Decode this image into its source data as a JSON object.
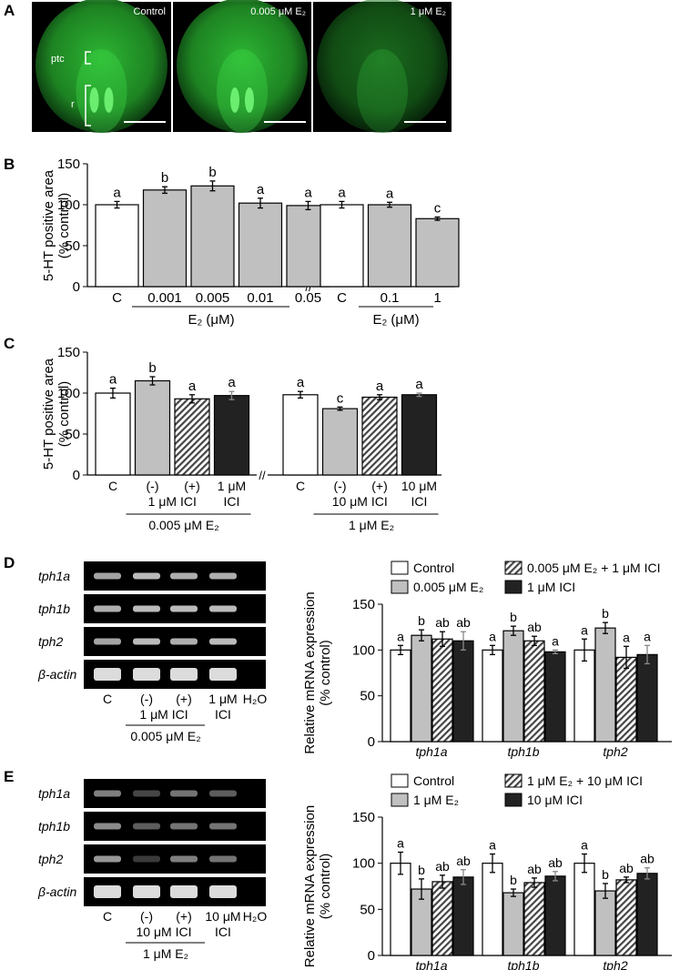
{
  "colors": {
    "white_bar": "#ffffff",
    "gray_bar": "#c0c0c0",
    "dark_bar": "#222222",
    "hatched_fg": "#444444",
    "micrograph_green": "#2fd13b",
    "gel_band": "#e8e8e8"
  },
  "panels": {
    "A": {
      "letter": "A",
      "images": [
        {
          "title": "Control"
        },
        {
          "title": "0.005 μM E₂"
        },
        {
          "title": "1 μM E₂"
        }
      ],
      "label_ptc": "ptc",
      "label_r": "r"
    },
    "B": {
      "letter": "B"
    },
    "C": {
      "letter": "C"
    },
    "D": {
      "letter": "D",
      "gel_rows": [
        "tph1a",
        "tph1b",
        "tph2",
        "β-actin"
      ],
      "lanes": [
        "C",
        "(-)",
        "(+)",
        "1 μM",
        "H₂O"
      ],
      "lane_sub": "ICI",
      "group1": "1 μM ICI",
      "group2": "0.005 μM E₂",
      "legend": [
        "Control",
        "0.005 μM E₂ + 1 μM ICI",
        "0.005 μM E₂",
        "1 μM ICI"
      ]
    },
    "E": {
      "letter": "E",
      "gel_rows": [
        "tph1a",
        "tph1b",
        "tph2",
        "β-actin"
      ],
      "lanes": [
        "C",
        "(-)",
        "(+)",
        "10 μM",
        "H₂O"
      ],
      "lane_sub": "ICI",
      "group1": "10 μM ICI",
      "group2": "1 μM E₂",
      "legend": [
        "Control",
        "1 μM E₂ + 10 μM ICI",
        "1 μM E₂",
        "10 μM ICI"
      ]
    }
  },
  "chart_data": [
    {
      "id": "B",
      "type": "bar",
      "ylabel": "5-HT positive area (% control)",
      "ylim": [
        0,
        150
      ],
      "yticks": [
        0,
        50,
        100,
        150
      ],
      "groups": [
        {
          "label": "E₂ (μM)",
          "bars": [
            {
              "x": "C",
              "value": 100,
              "err": 4,
              "letter": "a",
              "fill": "white"
            },
            {
              "x": "0.001",
              "value": 118,
              "err": 4,
              "letter": "b",
              "fill": "gray"
            },
            {
              "x": "0.005",
              "value": 123,
              "err": 6,
              "letter": "b",
              "fill": "gray"
            },
            {
              "x": "0.01",
              "value": 102,
              "err": 6,
              "letter": "a",
              "fill": "gray"
            },
            {
              "x": "0.05",
              "value": 99,
              "err": 5,
              "letter": "a",
              "fill": "gray"
            }
          ]
        },
        {
          "label": "E₂ (μM)",
          "bars": [
            {
              "x": "C",
              "value": 100,
              "err": 4,
              "letter": "a",
              "fill": "white"
            },
            {
              "x": "0.1",
              "value": 100,
              "err": 3,
              "letter": "a",
              "fill": "gray"
            },
            {
              "x": "1",
              "value": 83,
              "err": 2,
              "letter": "c",
              "fill": "gray"
            }
          ]
        }
      ]
    },
    {
      "id": "C",
      "type": "bar",
      "ylabel": "5-HT positive area (% control)",
      "ylim": [
        0,
        150
      ],
      "yticks": [
        0,
        50,
        100,
        150
      ],
      "groups": [
        {
          "bars": [
            {
              "x": "C",
              "value": 100,
              "err": 6,
              "letter": "a",
              "fill": "white"
            },
            {
              "x": "(-)",
              "value": 115,
              "err": 5,
              "letter": "b",
              "fill": "gray"
            },
            {
              "x": "(+)",
              "value": 93,
              "err": 5,
              "letter": "a",
              "fill": "hatch"
            },
            {
              "x": "1 μM",
              "x2": "ICI",
              "value": 97,
              "err": 5,
              "letter": "a",
              "fill": "dark"
            }
          ],
          "sub1": "1 μM ICI",
          "sub2": "0.005 μM E₂"
        },
        {
          "bars": [
            {
              "x": "C",
              "value": 98,
              "err": 4,
              "letter": "a",
              "fill": "white"
            },
            {
              "x": "(-)",
              "value": 81,
              "err": 2,
              "letter": "c",
              "fill": "gray"
            },
            {
              "x": "(+)",
              "value": 95,
              "err": 3,
              "letter": "a",
              "fill": "hatch"
            },
            {
              "x": "10 μM",
              "x2": "ICI",
              "value": 98,
              "err": 2,
              "letter": "a",
              "fill": "dark"
            }
          ],
          "sub1": "10 μM ICI",
          "sub2": "1 μM E₂"
        }
      ]
    },
    {
      "id": "D",
      "type": "bar",
      "ylabel": "Relative mRNA expression (% control)",
      "ylim": [
        0,
        150
      ],
      "yticks": [
        0,
        50,
        100,
        150
      ],
      "categories": [
        "tph1a",
        "tph1b",
        "tph2"
      ],
      "series": [
        {
          "fill": "white",
          "values": [
            100,
            100,
            100
          ],
          "err": [
            5,
            5,
            12
          ],
          "letters": [
            "a",
            "a",
            "a"
          ]
        },
        {
          "fill": "gray",
          "values": [
            116,
            121,
            124
          ],
          "err": [
            6,
            5,
            6
          ],
          "letters": [
            "b",
            "b",
            "b"
          ]
        },
        {
          "fill": "hatch",
          "values": [
            112,
            110,
            92
          ],
          "err": [
            8,
            5,
            12
          ],
          "letters": [
            "ab",
            "ab",
            "a"
          ]
        },
        {
          "fill": "dark",
          "values": [
            110,
            98,
            95
          ],
          "err": [
            10,
            2,
            10
          ],
          "letters": [
            "ab",
            "a",
            "a"
          ]
        }
      ]
    },
    {
      "id": "E",
      "type": "bar",
      "ylabel": "Relative mRNA expression (% control)",
      "ylim": [
        0,
        150
      ],
      "yticks": [
        0,
        50,
        100,
        150
      ],
      "categories": [
        "tph1a",
        "tph1b",
        "tph2"
      ],
      "series": [
        {
          "fill": "white",
          "values": [
            100,
            100,
            100
          ],
          "err": [
            12,
            10,
            10
          ],
          "letters": [
            "a",
            "a",
            "a"
          ]
        },
        {
          "fill": "gray",
          "values": [
            72,
            68,
            70
          ],
          "err": [
            11,
            4,
            8
          ],
          "letters": [
            "b",
            "b",
            "b"
          ]
        },
        {
          "fill": "hatch",
          "values": [
            80,
            79,
            82
          ],
          "err": [
            7,
            5,
            3
          ],
          "letters": [
            "ab",
            "ab",
            "ab"
          ]
        },
        {
          "fill": "dark",
          "values": [
            85,
            86,
            89
          ],
          "err": [
            8,
            5,
            6
          ],
          "letters": [
            "ab",
            "ab",
            "ab"
          ]
        }
      ]
    }
  ]
}
